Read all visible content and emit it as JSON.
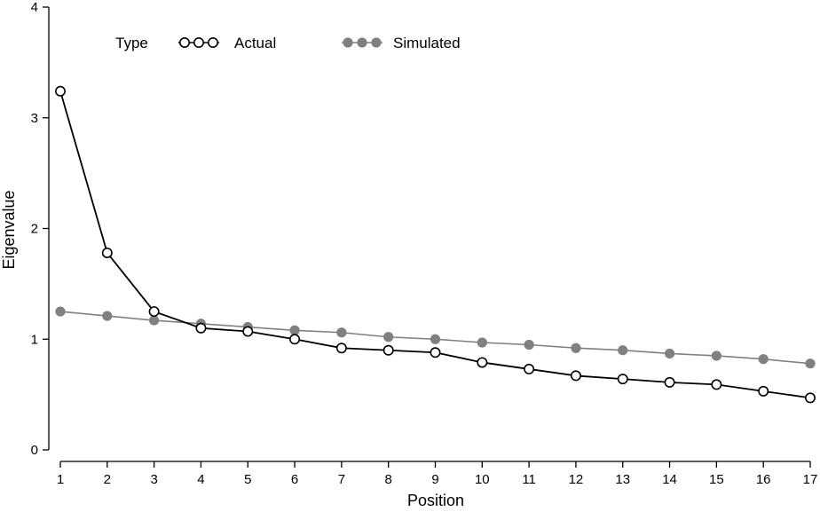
{
  "chart_data": {
    "type": "line",
    "title": "",
    "xlabel": "Position",
    "ylabel": "Eigenvalue",
    "x": [
      1,
      2,
      3,
      4,
      5,
      6,
      7,
      8,
      9,
      10,
      11,
      12,
      13,
      14,
      15,
      16,
      17
    ],
    "xlim": [
      1,
      17
    ],
    "ylim": [
      0,
      4
    ],
    "x_ticks": [
      "1",
      "2",
      "3",
      "4",
      "5",
      "6",
      "7",
      "8",
      "9",
      "10",
      "11",
      "12",
      "13",
      "14",
      "15",
      "16",
      "17"
    ],
    "y_ticks": [
      "0",
      "1",
      "2",
      "3",
      "4"
    ],
    "grid": false,
    "legend": {
      "title": "Type",
      "placement": "top-left"
    },
    "series": [
      {
        "name": "Actual",
        "color": "#000000",
        "marker": "hollow-circle",
        "values": [
          3.24,
          1.78,
          1.25,
          1.1,
          1.07,
          1.0,
          0.92,
          0.9,
          0.88,
          0.79,
          0.73,
          0.67,
          0.64,
          0.61,
          0.59,
          0.53,
          0.47
        ]
      },
      {
        "name": "Simulated",
        "color": "#808080",
        "marker": "filled-circle",
        "values": [
          1.25,
          1.21,
          1.17,
          1.14,
          1.11,
          1.08,
          1.06,
          1.02,
          1.0,
          0.97,
          0.95,
          0.92,
          0.9,
          0.87,
          0.85,
          0.82,
          0.78
        ]
      }
    ]
  }
}
